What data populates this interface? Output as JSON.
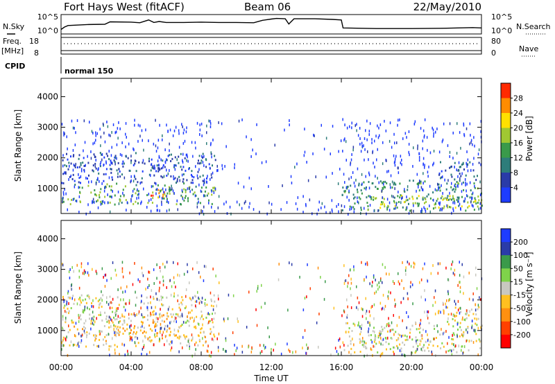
{
  "header": {
    "station": "Fort Hays West (fitACF)",
    "beam": "Beam 06",
    "date": "22/May/2010"
  },
  "strip_labels": {
    "nsky": "N.Sky",
    "nsearch": "N.Search",
    "freq_top": "Freq.",
    "freq_unit": "[MHz]",
    "nave": "Nave",
    "cpid": "CPID",
    "cpid_value": "normal 150"
  },
  "noise_axis": {
    "left_ticks": [
      "10^5",
      "10^0"
    ],
    "right_ticks": [
      "10^5",
      "10^0"
    ]
  },
  "freq_axis": {
    "left_ticks": [
      "18",
      "8"
    ],
    "right_ticks": [
      "80",
      "0"
    ]
  },
  "colors": {
    "power_scale": [
      "#1e3cff",
      "#2a3ba8",
      "#2e7d7a",
      "#3a9a4a",
      "#a0c832",
      "#ffe000",
      "#ff8c00",
      "#ff2a00"
    ],
    "velocity_scale": [
      "#1e3cff",
      "#2a3ba8",
      "#3a9a4a",
      "#7fd34a",
      "#c8c8c0",
      "#ffc020",
      "#ff9010",
      "#ff4000",
      "#ff0000"
    ],
    "noise_line": "#000000"
  },
  "chart_data": [
    {
      "type": "heatmap",
      "name": "power",
      "xlabel": "",
      "ylabel": "Slant Range [km]",
      "xlim": [
        0,
        24
      ],
      "ylim": [
        180,
        4600
      ],
      "yticks": [
        "1000",
        "2000",
        "3000",
        "4000"
      ],
      "xticks": [
        "00:00",
        "04:00",
        "08:00",
        "12:00",
        "16:00",
        "20:00",
        "00:00"
      ],
      "colorbar": {
        "label": "Power [dB]",
        "ticks": [
          "4",
          "8",
          "12",
          "16",
          "20",
          "24",
          "28"
        ],
        "range": [
          0,
          30
        ]
      },
      "echo_regions": [
        {
          "t": [
            0.0,
            8.8
          ],
          "range": [
            500,
            1200
          ],
          "value": 14
        },
        {
          "t": [
            0.0,
            8.8
          ],
          "range": [
            1200,
            2200
          ],
          "value": 6
        },
        {
          "t": [
            5.0,
            6.0
          ],
          "range": [
            650,
            1050
          ],
          "value": 25
        },
        {
          "t": [
            16.0,
            24.0
          ],
          "range": [
            300,
            1300
          ],
          "value": 12
        },
        {
          "t": [
            17.5,
            24.0
          ],
          "range": [
            400,
            800
          ],
          "value": 18
        },
        {
          "t": [
            21.5,
            24.0
          ],
          "range": [
            1300,
            1900
          ],
          "value": 7
        }
      ]
    },
    {
      "type": "heatmap",
      "name": "velocity",
      "xlabel": "Time UT",
      "ylabel": "Slant Range [km]",
      "xlim": [
        0,
        24
      ],
      "ylim": [
        180,
        4600
      ],
      "yticks": [
        "1000",
        "2000",
        "3000",
        "4000"
      ],
      "xticks": [
        "00:00",
        "04:00",
        "08:00",
        "12:00",
        "16:00",
        "20:00",
        "00:00"
      ],
      "colorbar": {
        "label": "Velocity [m s⁻¹]",
        "ticks": [
          "200",
          "100",
          "50",
          "15",
          "-15",
          "-50",
          "-100",
          "-200"
        ],
        "range": [
          -250,
          250
        ]
      },
      "echo_regions": [
        {
          "t": [
            0.0,
            8.8
          ],
          "range": [
            500,
            1200
          ],
          "value": -40
        },
        {
          "t": [
            0.0,
            8.8
          ],
          "range": [
            1200,
            2200
          ],
          "value": 0
        },
        {
          "t": [
            3.0,
            6.5
          ],
          "range": [
            800,
            1600
          ],
          "value": -60
        },
        {
          "t": [
            16.0,
            24.0
          ],
          "range": [
            300,
            1300
          ],
          "value": 0
        },
        {
          "t": [
            21.5,
            24.0
          ],
          "range": [
            1300,
            1900
          ],
          "value": -20
        }
      ]
    },
    {
      "type": "line",
      "name": "noise",
      "ylabel": "N.Sky",
      "x": [
        0,
        0.2,
        0.4,
        1.5,
        2.5,
        2.8,
        4.0,
        4.5,
        5.0,
        5.3,
        5.6,
        6.0,
        7.0,
        8.0,
        9.0,
        10.0,
        11.0,
        11.5,
        12.0,
        12.3,
        12.8,
        13.0,
        13.3,
        14.5,
        15.5,
        16.0,
        16.1,
        18.0,
        20.0,
        22.0,
        23.5,
        24.0
      ],
      "y": [
        0.8,
        1.6,
        2.1,
        2.4,
        2.5,
        3.3,
        3.2,
        3.0,
        3.9,
        3.1,
        3.4,
        3.1,
        3.1,
        3.2,
        3.1,
        3.1,
        3.0,
        3.8,
        4.2,
        4.4,
        4.3,
        2.6,
        4.3,
        4.3,
        4.1,
        3.9,
        1.3,
        1.1,
        1.1,
        1.2,
        1.4,
        1.3
      ]
    }
  ]
}
